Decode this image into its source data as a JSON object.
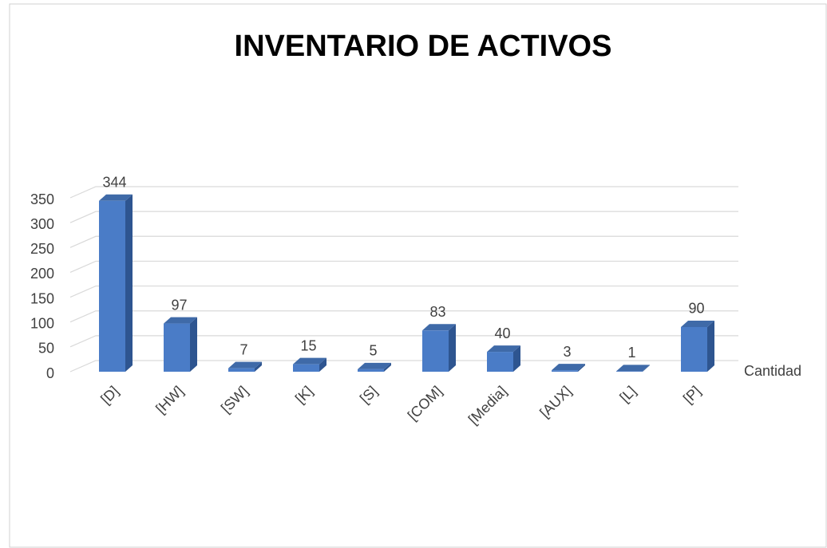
{
  "chart_data": {
    "type": "bar3d",
    "title": "INVENTARIO DE ACTIVOS",
    "categories": [
      "[D]",
      "[HW]",
      "[SW]",
      "[K]",
      "[S]",
      "[COM]",
      "[Media]",
      "[AUX]",
      "[L]",
      "[P]"
    ],
    "series": [
      {
        "name": "Cantidad",
        "color": "#4a7cc7",
        "values": [
          344,
          97,
          7,
          15,
          5,
          83,
          40,
          3,
          1,
          90
        ]
      }
    ],
    "ylim": [
      0,
      350
    ],
    "yticks": [
      0,
      50,
      100,
      150,
      200,
      250,
      300,
      350
    ],
    "grid": true
  }
}
